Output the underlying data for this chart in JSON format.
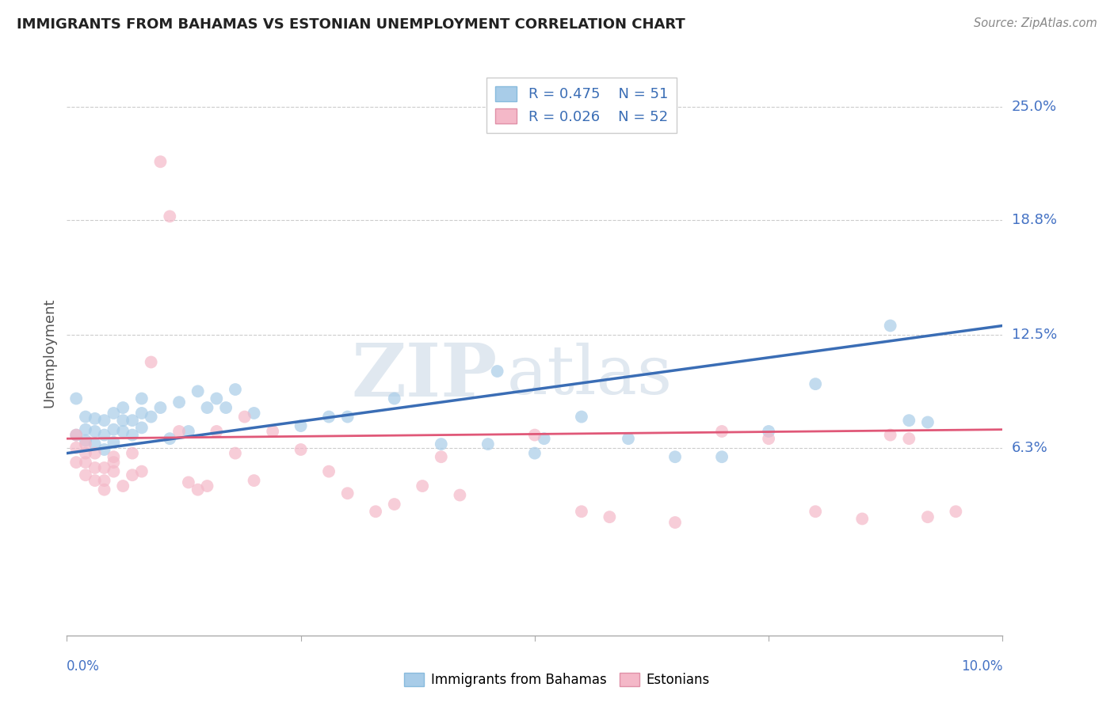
{
  "title": "IMMIGRANTS FROM BAHAMAS VS ESTONIAN UNEMPLOYMENT CORRELATION CHART",
  "source": "Source: ZipAtlas.com",
  "ylabel": "Unemployment",
  "xlim": [
    0.0,
    0.1
  ],
  "ylim": [
    -0.04,
    0.27
  ],
  "legend_r1": "R = 0.475",
  "legend_n1": "N = 51",
  "legend_r2": "R = 0.026",
  "legend_n2": "N = 52",
  "series1_color": "#a8cce8",
  "series2_color": "#f4b8c8",
  "series1_label": "Immigrants from Bahamas",
  "series2_label": "Estonians",
  "watermark_zip": "ZIP",
  "watermark_atlas": "atlas",
  "blue_line_x": [
    0.0,
    0.1
  ],
  "blue_line_y": [
    0.06,
    0.13
  ],
  "pink_line_x": [
    0.0,
    0.1
  ],
  "pink_line_y": [
    0.068,
    0.073
  ],
  "ytick_positions": [
    0.063,
    0.125,
    0.188,
    0.25
  ],
  "ytick_labels": [
    "6.3%",
    "12.5%",
    "18.8%",
    "25.0%"
  ],
  "xtick_positions": [
    0.0,
    0.025,
    0.05,
    0.075,
    0.1
  ],
  "blue_scatter_x": [
    0.001,
    0.001,
    0.002,
    0.002,
    0.002,
    0.003,
    0.003,
    0.003,
    0.004,
    0.004,
    0.004,
    0.005,
    0.005,
    0.005,
    0.006,
    0.006,
    0.006,
    0.007,
    0.007,
    0.008,
    0.008,
    0.008,
    0.009,
    0.01,
    0.011,
    0.012,
    0.013,
    0.014,
    0.015,
    0.016,
    0.017,
    0.018,
    0.02,
    0.025,
    0.028,
    0.03,
    0.035,
    0.04,
    0.045,
    0.046,
    0.05,
    0.051,
    0.055,
    0.06,
    0.065,
    0.07,
    0.075,
    0.08,
    0.088,
    0.09,
    0.092
  ],
  "blue_scatter_y": [
    0.07,
    0.09,
    0.067,
    0.073,
    0.08,
    0.065,
    0.072,
    0.079,
    0.062,
    0.07,
    0.078,
    0.066,
    0.073,
    0.082,
    0.072,
    0.078,
    0.085,
    0.07,
    0.078,
    0.074,
    0.082,
    0.09,
    0.08,
    0.085,
    0.068,
    0.088,
    0.072,
    0.094,
    0.085,
    0.09,
    0.085,
    0.095,
    0.082,
    0.075,
    0.08,
    0.08,
    0.09,
    0.065,
    0.065,
    0.105,
    0.06,
    0.068,
    0.08,
    0.068,
    0.058,
    0.058,
    0.072,
    0.098,
    0.13,
    0.078,
    0.077
  ],
  "pink_scatter_x": [
    0.001,
    0.001,
    0.001,
    0.002,
    0.002,
    0.002,
    0.002,
    0.003,
    0.003,
    0.003,
    0.004,
    0.004,
    0.004,
    0.005,
    0.005,
    0.005,
    0.006,
    0.007,
    0.007,
    0.008,
    0.009,
    0.01,
    0.011,
    0.012,
    0.013,
    0.014,
    0.015,
    0.016,
    0.018,
    0.019,
    0.02,
    0.022,
    0.025,
    0.028,
    0.03,
    0.033,
    0.035,
    0.038,
    0.04,
    0.042,
    0.05,
    0.055,
    0.058,
    0.065,
    0.07,
    0.075,
    0.08,
    0.085,
    0.088,
    0.09,
    0.092,
    0.095
  ],
  "pink_scatter_y": [
    0.055,
    0.063,
    0.07,
    0.055,
    0.06,
    0.065,
    0.048,
    0.045,
    0.052,
    0.06,
    0.045,
    0.052,
    0.04,
    0.055,
    0.05,
    0.058,
    0.042,
    0.048,
    0.06,
    0.05,
    0.11,
    0.22,
    0.19,
    0.072,
    0.044,
    0.04,
    0.042,
    0.072,
    0.06,
    0.08,
    0.045,
    0.072,
    0.062,
    0.05,
    0.038,
    0.028,
    0.032,
    0.042,
    0.058,
    0.037,
    0.07,
    0.028,
    0.025,
    0.022,
    0.072,
    0.068,
    0.028,
    0.024,
    0.07,
    0.068,
    0.025,
    0.028
  ]
}
